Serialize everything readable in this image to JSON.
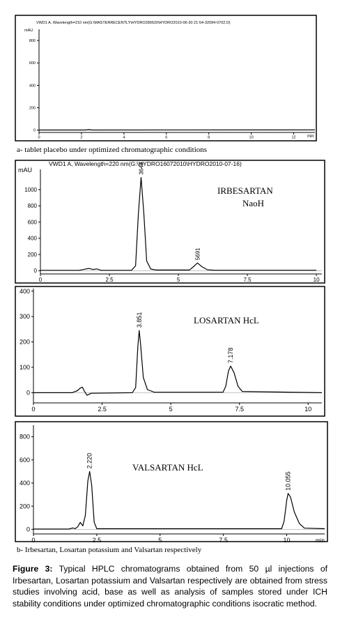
{
  "charts": [
    {
      "id": "a",
      "header": "VWD1 A, Wavelength=210 nm(G:\\MASTERRECENTLY\\HYDRO280620\\HYDRO2010-06-30 21-54-32094-0702.D)",
      "yunit": "mAU",
      "xunit": "min",
      "xticks": [
        "0",
        "2",
        "4",
        "6",
        "8",
        "10",
        "12"
      ],
      "yticks": [
        "0",
        "200",
        "400",
        "600",
        "800"
      ],
      "label_lines": [],
      "peak_labels": []
    },
    {
      "id": "irbesartan",
      "header": "VWD1 A, Wavelength=220 nm(G:\\HYDRO16072010\\HYDRO2010-07-16)",
      "yunit": "mAU",
      "xunit": "",
      "xticks": [
        "0",
        "2.5",
        "5",
        "7.5",
        "10"
      ],
      "yticks": [
        "0",
        "200",
        "400",
        "600",
        "800",
        "1000"
      ],
      "label_lines": [
        "IRBESARTAN",
        "NaoH"
      ],
      "peak_labels": [
        "3649",
        "5691"
      ]
    },
    {
      "id": "losartan",
      "header": "",
      "yunit": "",
      "xunit": "",
      "xticks": [
        "0",
        "2.5",
        "5",
        "7.5",
        "10"
      ],
      "yticks": [
        "0",
        "100",
        "200",
        "300",
        "400"
      ],
      "label_lines": [
        "LOSARTAN HcL"
      ],
      "peak_labels": [
        "3.851",
        "7.178"
      ]
    },
    {
      "id": "valsartan",
      "header": "",
      "yunit": "",
      "xunit": "min",
      "xticks": [
        "0",
        "2.5",
        "5",
        "7.5",
        "10"
      ],
      "yticks": [
        "0",
        "200",
        "400",
        "600",
        "800"
      ],
      "label_lines": [
        "VALSARTAN HcL"
      ],
      "peak_labels": [
        "2.220",
        "10.055"
      ]
    }
  ],
  "chart_data": [
    {
      "type": "line",
      "title": "",
      "xlabel": "min",
      "ylabel": "mAU",
      "xlim": [
        0,
        13
      ],
      "ylim": [
        -20,
        900
      ],
      "series": [
        {
          "x": [
            0,
            2.2,
            2.35,
            2.5,
            13
          ],
          "y": [
            2,
            2,
            6,
            2,
            3
          ]
        }
      ]
    },
    {
      "type": "line",
      "title": "",
      "xlabel": "",
      "ylabel": "mAU",
      "xlim": [
        0,
        10.2
      ],
      "ylim": [
        -40,
        1250
      ],
      "series": [
        {
          "x": [
            0,
            1.4,
            1.6,
            1.75,
            1.9,
            2.05,
            2.2,
            3.3,
            3.45,
            3.55,
            3.649,
            3.75,
            3.85,
            4.0,
            4.2,
            5.4,
            5.55,
            5.691,
            5.85,
            6.05,
            6.3,
            10
          ],
          "y": [
            5,
            5,
            18,
            28,
            15,
            22,
            5,
            5,
            60,
            700,
            1150,
            700,
            120,
            20,
            8,
            8,
            50,
            95,
            50,
            12,
            6,
            6
          ]
        }
      ],
      "annotations": [
        {
          "x": 3.649,
          "label": "3649"
        },
        {
          "x": 5.691,
          "label": "5691"
        }
      ]
    },
    {
      "type": "line",
      "title": "",
      "xlabel": "",
      "ylabel": "",
      "xlim": [
        0,
        10.5
      ],
      "ylim": [
        -40,
        410
      ],
      "series": [
        {
          "x": [
            0,
            1.4,
            1.6,
            1.7,
            1.78,
            1.86,
            1.95,
            2.1,
            3.6,
            3.72,
            3.8,
            3.851,
            3.9,
            4.0,
            4.15,
            4.4,
            6.9,
            7.0,
            7.1,
            7.178,
            7.3,
            7.45,
            7.6,
            10.5
          ],
          "y": [
            0,
            0,
            8,
            18,
            22,
            5,
            -10,
            -2,
            0,
            20,
            180,
            245,
            190,
            60,
            12,
            2,
            2,
            25,
            85,
            105,
            80,
            25,
            5,
            0
          ]
        }
      ],
      "annotations": [
        {
          "x": 3.851,
          "label": "3.851"
        },
        {
          "x": 7.178,
          "label": "7.178"
        }
      ]
    },
    {
      "type": "line",
      "title": "",
      "xlabel": "min",
      "ylabel": "",
      "xlim": [
        0,
        11.5
      ],
      "ylim": [
        -40,
        900
      ],
      "series": [
        {
          "x": [
            0,
            1.4,
            1.55,
            1.65,
            1.75,
            1.85,
            1.95,
            2.05,
            2.15,
            2.22,
            2.3,
            2.4,
            2.5,
            9.8,
            9.9,
            10.0,
            10.055,
            10.15,
            10.3,
            10.5,
            10.7,
            11.5
          ],
          "y": [
            2,
            2,
            12,
            6,
            22,
            60,
            30,
            120,
            420,
            500,
            380,
            60,
            5,
            5,
            70,
            250,
            310,
            280,
            150,
            50,
            10,
            5
          ]
        }
      ],
      "annotations": [
        {
          "x": 2.22,
          "label": "2.220"
        },
        {
          "x": 10.055,
          "label": "10.055"
        }
      ]
    }
  ],
  "captions": {
    "a": "a- tablet placebo under optimized chromatographic conditions",
    "b": "b- Irbesartan, Losartan potassium and Valsartan respectively",
    "figure_label": "Figure 3:",
    "figure_text": " Typical HPLC chromatograms obtained from 50 µl injections of Irbesartan, Losartan potassium and Valsartan respectively are obtained from stress studies involving acid, base as well as analysis of samples stored under ICH stability conditions under optimized chromatographic conditions isocratic method."
  }
}
